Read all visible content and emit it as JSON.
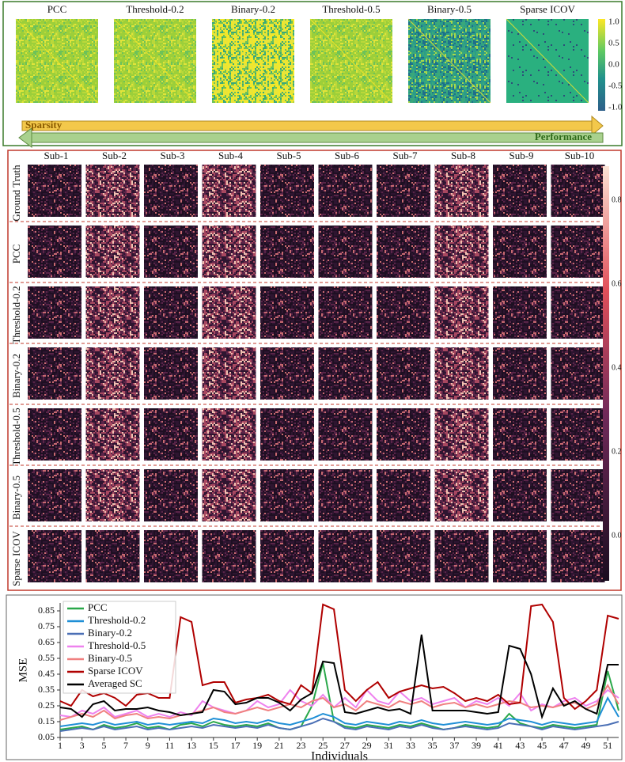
{
  "top_panel": {
    "titles": [
      "PCC",
      "Threshold-0.2",
      "Binary-0.2",
      "Threshold-0.5",
      "Binary-0.5",
      "Sparse ICOV"
    ],
    "colorbar_ticks": [
      "1.0",
      "0.5",
      "0.0",
      "-0.5",
      "-1.0"
    ],
    "sparsity": "Sparsity",
    "performance": "Performance"
  },
  "middle_panel": {
    "columns": [
      "Sub-1",
      "Sub-2",
      "Sub-3",
      "Sub-4",
      "Sub-5",
      "Sub-6",
      "Sub-7",
      "Sub-8",
      "Sub-9",
      "Sub-10"
    ],
    "rows": [
      "Ground Truth",
      "PCC",
      "Threshold-0.2",
      "Binary-0.2",
      "Threshold-0.5",
      "Binary-0.5",
      "Sparse ICOV"
    ],
    "colorbar_ticks": [
      "0.8",
      "0.6",
      "0.4",
      "0.2",
      "0.0"
    ]
  },
  "chart_data": {
    "type": "line",
    "y_label": "MSE",
    "x_label": "Individuals",
    "x": [
      1,
      2,
      3,
      4,
      5,
      6,
      7,
      8,
      9,
      10,
      11,
      12,
      13,
      14,
      15,
      16,
      17,
      18,
      19,
      20,
      21,
      22,
      23,
      24,
      25,
      26,
      27,
      28,
      29,
      30,
      31,
      32,
      33,
      34,
      35,
      36,
      37,
      38,
      39,
      40,
      41,
      42,
      43,
      44,
      45,
      46,
      47,
      48,
      49,
      50,
      51,
      52
    ],
    "xlim": [
      1,
      52
    ],
    "xticks": [
      1,
      3,
      5,
      7,
      9,
      11,
      13,
      15,
      17,
      19,
      21,
      23,
      25,
      27,
      29,
      31,
      33,
      35,
      37,
      39,
      41,
      43,
      45,
      47,
      49,
      51
    ],
    "ylim": [
      0.05,
      0.9
    ],
    "yticks": [
      0.05,
      0.15,
      0.25,
      0.35,
      0.45,
      0.55,
      0.65,
      0.75,
      0.85
    ],
    "legend": "upper-left",
    "series": [
      {
        "name": "PCC",
        "color": "#2aa84a",
        "values": [
          0.1,
          0.11,
          0.12,
          0.1,
          0.13,
          0.11,
          0.12,
          0.14,
          0.11,
          0.12,
          0.1,
          0.13,
          0.14,
          0.12,
          0.15,
          0.13,
          0.12,
          0.13,
          0.12,
          0.14,
          0.11,
          0.1,
          0.12,
          0.25,
          0.52,
          0.15,
          0.12,
          0.11,
          0.13,
          0.12,
          0.11,
          0.13,
          0.12,
          0.14,
          0.12,
          0.1,
          0.11,
          0.13,
          0.12,
          0.11,
          0.12,
          0.2,
          0.14,
          0.12,
          0.11,
          0.13,
          0.12,
          0.11,
          0.12,
          0.13,
          0.47,
          0.22
        ]
      },
      {
        "name": "Threshold-0.2",
        "color": "#1f8fd6",
        "values": [
          0.12,
          0.13,
          0.14,
          0.13,
          0.15,
          0.13,
          0.14,
          0.15,
          0.13,
          0.14,
          0.13,
          0.14,
          0.15,
          0.14,
          0.17,
          0.16,
          0.14,
          0.15,
          0.14,
          0.16,
          0.14,
          0.13,
          0.15,
          0.17,
          0.2,
          0.18,
          0.14,
          0.13,
          0.15,
          0.14,
          0.13,
          0.15,
          0.14,
          0.16,
          0.14,
          0.13,
          0.14,
          0.15,
          0.14,
          0.13,
          0.14,
          0.17,
          0.16,
          0.15,
          0.13,
          0.15,
          0.14,
          0.13,
          0.14,
          0.15,
          0.3,
          0.18
        ]
      },
      {
        "name": "Binary-0.2",
        "color": "#4a6fb5",
        "values": [
          0.09,
          0.1,
          0.11,
          0.1,
          0.12,
          0.1,
          0.11,
          0.12,
          0.1,
          0.11,
          0.1,
          0.11,
          0.12,
          0.11,
          0.13,
          0.12,
          0.11,
          0.12,
          0.11,
          0.13,
          0.11,
          0.1,
          0.12,
          0.14,
          0.17,
          0.15,
          0.11,
          0.1,
          0.12,
          0.11,
          0.1,
          0.12,
          0.11,
          0.13,
          0.11,
          0.1,
          0.11,
          0.12,
          0.11,
          0.1,
          0.11,
          0.14,
          0.13,
          0.12,
          0.1,
          0.12,
          0.11,
          0.1,
          0.11,
          0.12,
          0.13,
          0.15
        ]
      },
      {
        "name": "Threshold-0.5",
        "color": "#ee82ee",
        "values": [
          0.19,
          0.18,
          0.22,
          0.2,
          0.24,
          0.18,
          0.2,
          0.22,
          0.18,
          0.2,
          0.18,
          0.21,
          0.19,
          0.28,
          0.24,
          0.22,
          0.2,
          0.22,
          0.28,
          0.24,
          0.26,
          0.35,
          0.28,
          0.25,
          0.32,
          0.24,
          0.3,
          0.24,
          0.35,
          0.28,
          0.26,
          0.34,
          0.28,
          0.3,
          0.26,
          0.28,
          0.3,
          0.24,
          0.28,
          0.26,
          0.3,
          0.25,
          0.33,
          0.22,
          0.26,
          0.24,
          0.28,
          0.3,
          0.25,
          0.28,
          0.35,
          0.3
        ]
      },
      {
        "name": "Binary-0.5",
        "color": "#f08080",
        "values": [
          0.16,
          0.18,
          0.2,
          0.18,
          0.22,
          0.17,
          0.19,
          0.2,
          0.17,
          0.18,
          0.17,
          0.19,
          0.2,
          0.22,
          0.24,
          0.21,
          0.2,
          0.22,
          0.24,
          0.22,
          0.24,
          0.26,
          0.24,
          0.28,
          0.3,
          0.24,
          0.26,
          0.22,
          0.28,
          0.26,
          0.24,
          0.28,
          0.26,
          0.28,
          0.24,
          0.26,
          0.27,
          0.24,
          0.26,
          0.24,
          0.26,
          0.28,
          0.27,
          0.24,
          0.25,
          0.24,
          0.26,
          0.27,
          0.23,
          0.26,
          0.38,
          0.26
        ]
      },
      {
        "name": "Sparse ICOV",
        "color": "#b00000",
        "values": [
          0.28,
          0.25,
          0.35,
          0.31,
          0.33,
          0.3,
          0.25,
          0.32,
          0.33,
          0.3,
          0.3,
          0.81,
          0.78,
          0.38,
          0.4,
          0.4,
          0.27,
          0.29,
          0.3,
          0.32,
          0.28,
          0.26,
          0.38,
          0.33,
          0.89,
          0.86,
          0.35,
          0.28,
          0.35,
          0.4,
          0.3,
          0.34,
          0.36,
          0.38,
          0.36,
          0.37,
          0.33,
          0.28,
          0.3,
          0.28,
          0.32,
          0.26,
          0.27,
          0.88,
          0.89,
          0.78,
          0.3,
          0.23,
          0.28,
          0.35,
          0.82,
          0.8
        ]
      },
      {
        "name": "Averaged SC",
        "color": "#000000",
        "values": [
          0.24,
          0.23,
          0.18,
          0.26,
          0.28,
          0.22,
          0.23,
          0.23,
          0.24,
          0.22,
          0.21,
          0.19,
          0.2,
          0.21,
          0.35,
          0.34,
          0.26,
          0.27,
          0.3,
          0.3,
          0.27,
          0.22,
          0.29,
          0.33,
          0.53,
          0.52,
          0.21,
          0.2,
          0.22,
          0.24,
          0.22,
          0.23,
          0.2,
          0.7,
          0.22,
          0.22,
          0.22,
          0.22,
          0.21,
          0.2,
          0.21,
          0.63,
          0.61,
          0.45,
          0.18,
          0.36,
          0.25,
          0.28,
          0.23,
          0.2,
          0.51,
          0.51
        ]
      }
    ]
  }
}
